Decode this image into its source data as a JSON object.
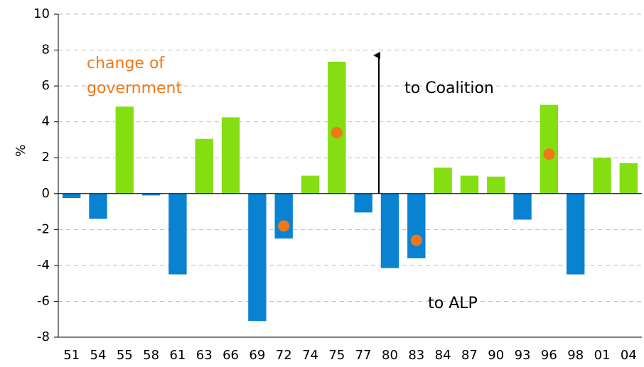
{
  "chart_data": {
    "type": "bar",
    "y_label": "%",
    "categories": [
      "51",
      "54",
      "55",
      "58",
      "61",
      "63",
      "66",
      "69",
      "72",
      "74",
      "75",
      "77",
      "80",
      "83",
      "84",
      "87",
      "90",
      "93",
      "96",
      "98",
      "01",
      "04"
    ],
    "values": [
      -0.25,
      -1.4,
      4.85,
      -0.1,
      -4.5,
      3.05,
      4.25,
      -7.1,
      -2.5,
      1.0,
      7.35,
      -1.05,
      -4.15,
      -3.6,
      1.45,
      1.0,
      0.95,
      -1.45,
      4.95,
      -4.5,
      2.0,
      1.7
    ],
    "positive_color": "#84de12",
    "negative_color": "#0a82d2",
    "markers": {
      "label": [
        "change of",
        "government"
      ],
      "color": "#f07818",
      "values": [
        null,
        null,
        null,
        null,
        null,
        null,
        null,
        null,
        -1.8,
        null,
        3.4,
        null,
        null,
        -2.6,
        null,
        null,
        null,
        null,
        2.2,
        null,
        null,
        null
      ]
    },
    "annotations": [
      "to Coalition",
      "to ALP"
    ],
    "ylim": [
      -8,
      10
    ],
    "yticks": [
      -8,
      -6,
      -4,
      -2,
      0,
      2,
      4,
      6,
      8,
      10
    ],
    "grid": true
  }
}
